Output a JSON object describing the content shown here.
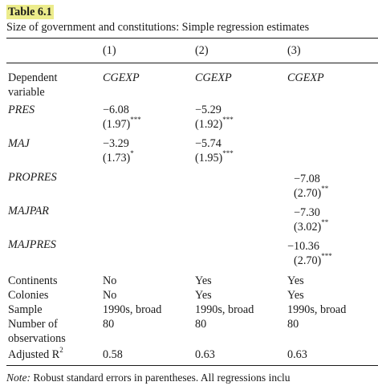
{
  "table": {
    "label": "Table 6.1",
    "caption": "Size of government and constitutions: Simple regression estimates",
    "columns": [
      "(1)",
      "(2)",
      "(3)"
    ],
    "dependent": {
      "label_line1": "Dependent",
      "label_line2": "variable",
      "values": [
        "CGEXP",
        "CGEXP",
        "CGEXP"
      ]
    },
    "rows": [
      {
        "name": "PRES",
        "c1": "−6.08",
        "c1se": "(1.97)",
        "c1sig": "***",
        "c2": "−5.29",
        "c2se": "(1.92)",
        "c2sig": "***",
        "c3": "",
        "c3se": "",
        "c3sig": ""
      },
      {
        "name": "MAJ",
        "c1": "−3.29",
        "c1se": "(1.73)",
        "c1sig": "*",
        "c2": "−5.74",
        "c2se": "(1.95)",
        "c2sig": "***",
        "c3": "",
        "c3se": "",
        "c3sig": ""
      },
      {
        "name": "PROPRES",
        "c1": "",
        "c1se": "",
        "c1sig": "",
        "c2": "",
        "c2se": "",
        "c2sig": "",
        "c3": "−7.08",
        "c3se": "(2.70)",
        "c3sig": "**"
      },
      {
        "name": "MAJPAR",
        "c1": "",
        "c1se": "",
        "c1sig": "",
        "c2": "",
        "c2se": "",
        "c2sig": "",
        "c3": "−7.30",
        "c3se": "(3.02)",
        "c3sig": "**"
      },
      {
        "name": "MAJPRES",
        "c1": "",
        "c1se": "",
        "c1sig": "",
        "c2": "",
        "c2se": "",
        "c2sig": "",
        "c3": "−10.36",
        "c3se": "(2.70)",
        "c3sig": "***"
      }
    ],
    "stats": {
      "continents": {
        "label": "Continents",
        "values": [
          "No",
          "Yes",
          "Yes"
        ]
      },
      "colonies": {
        "label": "Colonies",
        "values": [
          "No",
          "Yes",
          "Yes"
        ]
      },
      "sample": {
        "label": "Sample",
        "values": [
          "1990s, broad",
          "1990s, broad",
          "1990s, broad"
        ]
      },
      "nobs": {
        "label_line1": "Number of",
        "label_line2": "observations",
        "values": [
          "80",
          "80",
          "80"
        ]
      },
      "adjr2": {
        "label": "Adjusted R",
        "label_sup": "2",
        "values": [
          "0.58",
          "0.63",
          "0.63"
        ]
      }
    },
    "note": {
      "prefix": "Note:",
      "text": "Robust standard errors in parentheses. All regressions inclu"
    }
  }
}
